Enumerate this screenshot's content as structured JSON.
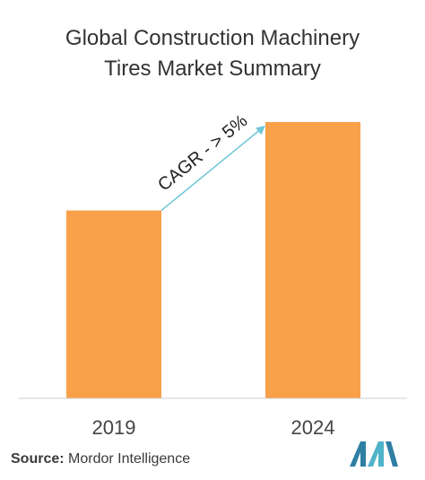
{
  "title": {
    "line1": "Global Construction Machinery",
    "line2": "Tires Market Summary"
  },
  "chart_data": {
    "type": "bar",
    "categories": [
      "2019",
      "2024"
    ],
    "values": [
      0.68,
      1.0
    ],
    "bar_color": "#f9a04a",
    "annotation": {
      "text": "CAGR - > 5%",
      "arrow_color": "#6ec6d8"
    },
    "grid": false
  },
  "source": {
    "label": "Source:",
    "text": "Mordor Intelligence"
  },
  "logo": {
    "icon": "mordor-intelligence-logo",
    "colors": [
      "#2f7fa3",
      "#4fb3c9"
    ]
  }
}
